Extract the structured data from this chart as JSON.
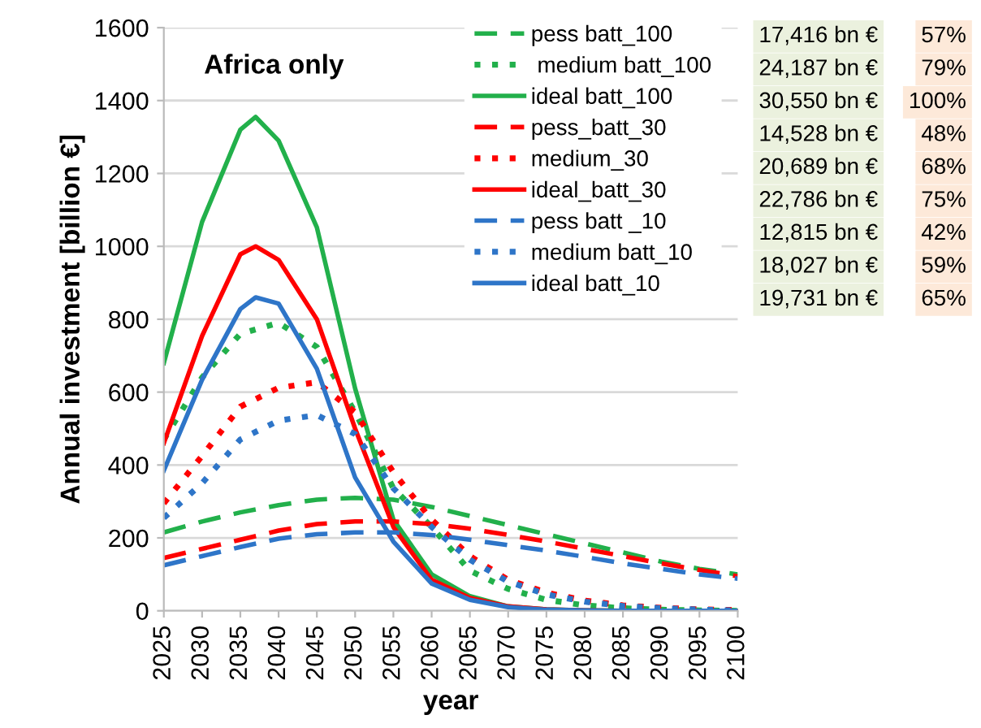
{
  "chart_data": {
    "type": "line",
    "xlabel": "year",
    "ylabel": "Annual investment [billion €]",
    "annotations": [
      "Africa only",
      "17,416 bn €",
      "57%",
      "24,187 bn €",
      "79%",
      "30,550 bn €",
      "100%",
      "14,528 bn €",
      "48%",
      "20,689 bn €",
      "68%",
      "22,786 bn €",
      "75%",
      "12,815 bn €",
      "42%",
      "18,027 bn €",
      "59%",
      "19,731 bn €",
      "65%"
    ],
    "x": [
      2025,
      2030,
      2035,
      2040,
      2045,
      2050,
      2055,
      2060,
      2065,
      2070,
      2075,
      2080,
      2085,
      2090,
      2095,
      2100
    ],
    "series": [
      {
        "name": "pess batt_100",
        "color": "#22b04b",
        "line_style": "dashed",
        "values": [
          215,
          245,
          270,
          290,
          305,
          310,
          305,
          285,
          260,
          235,
          210,
          185,
          160,
          135,
          115,
          100
        ]
      },
      {
        "name": " medium batt_100",
        "color": "#22b04b",
        "line_style": "dotted",
        "values": [
          470,
          640,
          760,
          790,
          724,
          545,
          336,
          230,
          110,
          60,
          30,
          15,
          7,
          3,
          1,
          0
        ]
      },
      {
        "name": "ideal batt_100",
        "color": "#22b04b",
        "line_style": "solid",
        "x": [
          2025,
          2030,
          2035,
          2037,
          2040,
          2045,
          2050,
          2055,
          2060,
          2065,
          2070,
          2075,
          2080,
          2085,
          2090,
          2095,
          2100
        ],
        "values": [
          680,
          1067,
          1320,
          1355,
          1290,
          1052,
          610,
          250,
          100,
          40,
          12,
          4,
          1,
          0,
          0,
          0,
          0
        ]
      },
      {
        "name": "pess_batt_30",
        "color": "#ff0000",
        "line_style": "dashed",
        "values": [
          145,
          170,
          195,
          220,
          238,
          245,
          245,
          238,
          225,
          208,
          190,
          170,
          150,
          130,
          112,
          95
        ]
      },
      {
        "name": "medium_30",
        "color": "#ff0000",
        "line_style": "dotted",
        "values": [
          295,
          425,
          560,
          612,
          627,
          545,
          380,
          250,
          150,
          85,
          50,
          28,
          15,
          8,
          4,
          2
        ]
      },
      {
        "name": "ideal_batt_30",
        "color": "#ff0000",
        "line_style": "solid",
        "x": [
          2025,
          2030,
          2035,
          2037,
          2040,
          2045,
          2050,
          2055,
          2060,
          2065,
          2070,
          2075,
          2080,
          2085,
          2090,
          2095,
          2100
        ],
        "values": [
          460,
          754,
          978,
          1000,
          963,
          800,
          500,
          230,
          85,
          35,
          12,
          4,
          1,
          0,
          0,
          0,
          0
        ]
      },
      {
        "name": "pess batt _10",
        "color": "#2e75c8",
        "line_style": "dashed",
        "values": [
          125,
          150,
          175,
          198,
          210,
          215,
          215,
          208,
          195,
          180,
          165,
          148,
          130,
          115,
          100,
          88
        ]
      },
      {
        "name": "medium batt_10",
        "color": "#2e75c8",
        "line_style": "dotted",
        "values": [
          255,
          350,
          470,
          522,
          537,
          485,
          336,
          230,
          140,
          80,
          45,
          25,
          13,
          7,
          3,
          1
        ]
      },
      {
        "name": "ideal batt_10",
        "color": "#2e75c8",
        "line_style": "solid",
        "x": [
          2025,
          2030,
          2035,
          2037,
          2040,
          2045,
          2050,
          2055,
          2060,
          2065,
          2070,
          2075,
          2080,
          2085,
          2090,
          2095,
          2100
        ],
        "values": [
          385,
          634,
          828,
          860,
          843,
          664,
          366,
          190,
          75,
          30,
          10,
          3,
          1,
          0,
          0,
          0,
          0
        ]
      }
    ],
    "xlim": [
      2025,
      2100
    ],
    "xticks": [
      2025,
      2030,
      2035,
      2040,
      2045,
      2050,
      2055,
      2060,
      2065,
      2070,
      2075,
      2080,
      2085,
      2090,
      2095,
      2100
    ],
    "ylim": [
      0,
      1600
    ],
    "yticks": [
      0,
      200,
      400,
      600,
      800,
      1000,
      1200,
      1400,
      1600
    ],
    "grid": "y",
    "legend": "top right"
  }
}
